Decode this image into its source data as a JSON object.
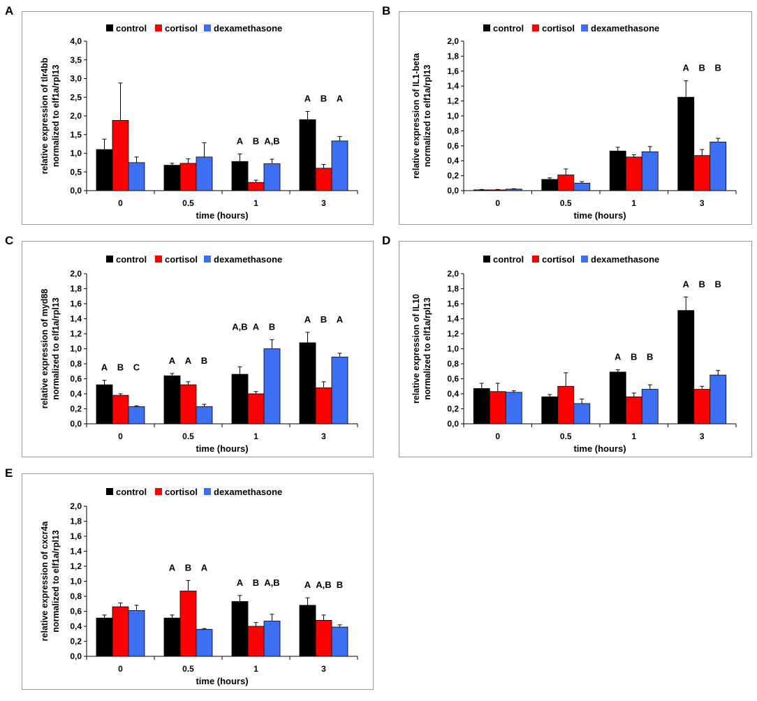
{
  "colors": {
    "control": "#000000",
    "cortisol": "#ff0000",
    "dexamethasone": "#3d6ff2"
  },
  "legend": [
    "control",
    "cortisol",
    "dexamethasone"
  ],
  "chart_data": [
    {
      "panel": "A",
      "type": "bar",
      "title": "",
      "xlabel": "time (hours)",
      "ylabel": [
        "relative expression of tlr4bb",
        "normalized to elf1a/rpl13"
      ],
      "categories": [
        "0",
        "0.5",
        "1",
        "3"
      ],
      "ylim": [
        0,
        4.0
      ],
      "yticks": [
        "0,0",
        "0,5",
        "1,0",
        "1,5",
        "2,0",
        "2,5",
        "3,0",
        "3,5",
        "4,0"
      ],
      "series": [
        {
          "name": "control",
          "values": [
            1.1,
            0.68,
            0.78,
            1.9
          ],
          "errors": [
            0.28,
            0.05,
            0.2,
            0.22
          ]
        },
        {
          "name": "cortisol",
          "values": [
            1.88,
            0.73,
            0.22,
            0.6
          ],
          "errors": [
            1.0,
            0.12,
            0.06,
            0.1
          ]
        },
        {
          "name": "dexamethasone",
          "values": [
            0.75,
            0.9,
            0.72,
            1.33
          ],
          "errors": [
            0.15,
            0.38,
            0.12,
            0.12
          ]
        }
      ],
      "annotations": [
        {
          "category": 2,
          "labels": [
            "A",
            "B",
            "A,B"
          ]
        },
        {
          "category": 3,
          "labels": [
            "A",
            "B",
            "A"
          ]
        }
      ]
    },
    {
      "panel": "B",
      "type": "bar",
      "title": "",
      "xlabel": "time (hours)",
      "ylabel": [
        "relative expression of IL1-beta",
        "normalized to elf1a/rpl13"
      ],
      "categories": [
        "0",
        "0.5",
        "1",
        "3"
      ],
      "ylim": [
        0,
        2.0
      ],
      "yticks": [
        "0,0",
        "0,2",
        "0,4",
        "0,6",
        "0,8",
        "1,0",
        "1,2",
        "1,4",
        "1,6",
        "1,8",
        "2,0"
      ],
      "series": [
        {
          "name": "control",
          "values": [
            0.01,
            0.15,
            0.53,
            1.25
          ],
          "errors": [
            0.005,
            0.02,
            0.05,
            0.22
          ]
        },
        {
          "name": "cortisol",
          "values": [
            0.01,
            0.21,
            0.45,
            0.47
          ],
          "errors": [
            0.005,
            0.08,
            0.03,
            0.08
          ]
        },
        {
          "name": "dexamethasone",
          "values": [
            0.02,
            0.1,
            0.52,
            0.65
          ],
          "errors": [
            0.005,
            0.02,
            0.07,
            0.05
          ]
        }
      ],
      "annotations": [
        {
          "category": 3,
          "labels": [
            "A",
            "B",
            "B"
          ]
        }
      ]
    },
    {
      "panel": "C",
      "type": "bar",
      "title": "",
      "xlabel": "time (hours)",
      "ylabel": [
        "relative expression of myd88",
        "normalized to elf1a/rpl13"
      ],
      "categories": [
        "0",
        "0.5",
        "1",
        "3"
      ],
      "ylim": [
        0,
        2.0
      ],
      "yticks": [
        "0,0",
        "0,2",
        "0,4",
        "0,6",
        "0,8",
        "1,0",
        "1,2",
        "1,4",
        "1,6",
        "1,8",
        "2,0"
      ],
      "series": [
        {
          "name": "control",
          "values": [
            0.52,
            0.64,
            0.66,
            1.08
          ],
          "errors": [
            0.06,
            0.03,
            0.1,
            0.14
          ]
        },
        {
          "name": "cortisol",
          "values": [
            0.38,
            0.52,
            0.4,
            0.48
          ],
          "errors": [
            0.02,
            0.04,
            0.03,
            0.08
          ]
        },
        {
          "name": "dexamethasone",
          "values": [
            0.23,
            0.23,
            1.0,
            0.89
          ],
          "errors": [
            0.01,
            0.03,
            0.12,
            0.05
          ]
        }
      ],
      "annotations": [
        {
          "category": 0,
          "labels": [
            "A",
            "B",
            "C"
          ]
        },
        {
          "category": 1,
          "labels": [
            "A",
            "A",
            "B"
          ]
        },
        {
          "category": 2,
          "labels": [
            "A,B",
            "A",
            "B"
          ]
        },
        {
          "category": 3,
          "labels": [
            "A",
            "B",
            "A"
          ]
        }
      ]
    },
    {
      "panel": "D",
      "type": "bar",
      "title": "",
      "xlabel": "time (hours)",
      "ylabel": [
        "relative expression of IL10",
        "normalized to elf1a/rpl13"
      ],
      "categories": [
        "0",
        "0.5",
        "1",
        "3"
      ],
      "ylim": [
        0,
        2.0
      ],
      "yticks": [
        "0,0",
        "0,2",
        "0,4",
        "0,6",
        "0,8",
        "1,0",
        "1,2",
        "1,4",
        "1,6",
        "1,8",
        "2,0"
      ],
      "series": [
        {
          "name": "control",
          "values": [
            0.47,
            0.36,
            0.69,
            1.51
          ],
          "errors": [
            0.07,
            0.03,
            0.03,
            0.18
          ]
        },
        {
          "name": "cortisol",
          "values": [
            0.43,
            0.5,
            0.36,
            0.46
          ],
          "errors": [
            0.11,
            0.18,
            0.05,
            0.04
          ]
        },
        {
          "name": "dexamethasone",
          "values": [
            0.42,
            0.27,
            0.46,
            0.65
          ],
          "errors": [
            0.02,
            0.06,
            0.06,
            0.06
          ]
        }
      ],
      "annotations": [
        {
          "category": 2,
          "labels": [
            "A",
            "B",
            "B"
          ]
        },
        {
          "category": 3,
          "labels": [
            "A",
            "B",
            "B"
          ]
        }
      ]
    },
    {
      "panel": "E",
      "type": "bar",
      "title": "",
      "xlabel": "time (hours)",
      "ylabel": [
        "relative expression of cxcr4a",
        "normalized to elf1a/rpl13"
      ],
      "categories": [
        "0",
        "0.5",
        "1",
        "3"
      ],
      "ylim": [
        0,
        2.0
      ],
      "yticks": [
        "0,0",
        "0,2",
        "0,4",
        "0,6",
        "0,8",
        "1,0",
        "1,2",
        "1,4",
        "1,6",
        "1,8",
        "2,0"
      ],
      "series": [
        {
          "name": "control",
          "values": [
            0.51,
            0.51,
            0.73,
            0.68
          ],
          "errors": [
            0.04,
            0.04,
            0.08,
            0.1
          ]
        },
        {
          "name": "cortisol",
          "values": [
            0.66,
            0.87,
            0.4,
            0.48
          ],
          "errors": [
            0.05,
            0.14,
            0.05,
            0.07
          ]
        },
        {
          "name": "dexamethasone",
          "values": [
            0.61,
            0.36,
            0.47,
            0.39
          ],
          "errors": [
            0.07,
            0.01,
            0.09,
            0.03
          ]
        }
      ],
      "annotations": [
        {
          "category": 1,
          "labels": [
            "A",
            "B",
            "A"
          ]
        },
        {
          "category": 2,
          "labels": [
            "A",
            "B",
            "A,B"
          ]
        },
        {
          "category": 3,
          "labels": [
            "A",
            "A,B",
            "B"
          ]
        }
      ]
    }
  ]
}
